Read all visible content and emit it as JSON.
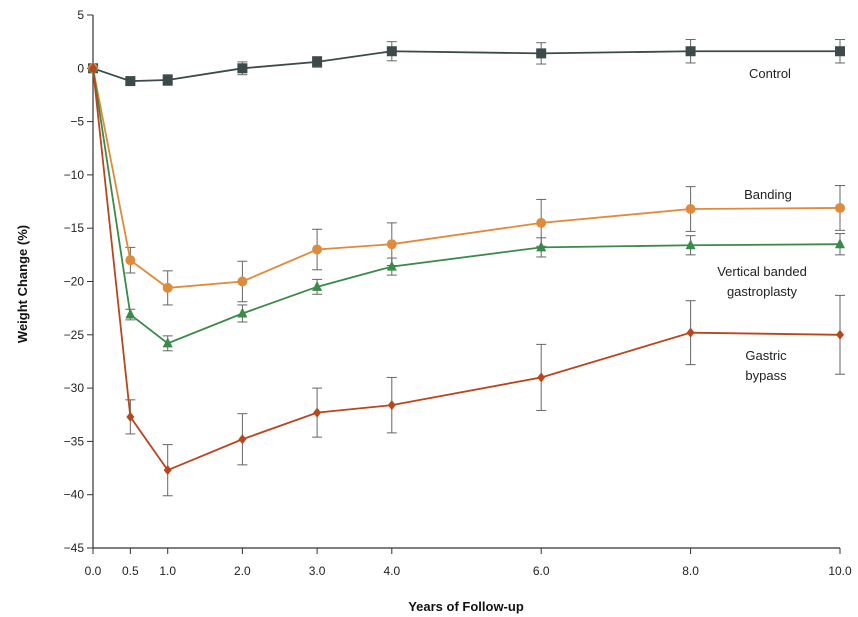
{
  "chart_data": {
    "type": "line",
    "title": "",
    "xlabel": "Years of Follow-up",
    "ylabel": "Weight Change (%)",
    "xlim": [
      0,
      10
    ],
    "ylim": [
      -45,
      5
    ],
    "x_ticks": [
      0,
      0.5,
      1.0,
      2.0,
      3.0,
      4.0,
      6.0,
      8.0,
      10.0
    ],
    "x_tick_labels": [
      "0.0",
      "0.5",
      "1.0",
      "2.0",
      "3.0",
      "4.0",
      "6.0",
      "8.0",
      "10.0"
    ],
    "y_ticks": [
      5,
      0,
      -5,
      -10,
      -15,
      -20,
      -25,
      -30,
      -35,
      -40,
      -45
    ],
    "y_tick_labels": [
      "5",
      "0",
      "−5",
      "−10",
      "−15",
      "−20",
      "−25",
      "−30",
      "−35",
      "−40",
      "−45"
    ],
    "grid": false,
    "legend": "none",
    "series": [
      {
        "name": "Control",
        "label_lines": [
          "Control"
        ],
        "color": "#3b4a4a",
        "marker": "square",
        "x": [
          0,
          0.5,
          1.0,
          2.0,
          3.0,
          4.0,
          6.0,
          8.0,
          10.0
        ],
        "y": [
          0,
          -1.2,
          -1.1,
          0.0,
          0.6,
          1.6,
          1.4,
          1.6,
          1.6
        ],
        "error": [
          0,
          0.3,
          0.5,
          0.6,
          0.5,
          0.9,
          1.0,
          1.1,
          1.1
        ]
      },
      {
        "name": "Banding",
        "label_lines": [
          "Banding"
        ],
        "color": "#e08a3c",
        "marker": "circle",
        "x": [
          0,
          0.5,
          1.0,
          2.0,
          3.0,
          4.0,
          6.0,
          8.0,
          10.0
        ],
        "y": [
          0,
          -18.0,
          -20.6,
          -20.0,
          -17.0,
          -16.5,
          -14.5,
          -13.2,
          -13.1
        ],
        "error": [
          0,
          1.2,
          1.6,
          1.9,
          1.9,
          2.0,
          2.2,
          2.1,
          2.1
        ]
      },
      {
        "name": "Vertical banded gastroplasty",
        "label_lines": [
          "Vertical banded",
          "gastroplasty"
        ],
        "color": "#3a8a4a",
        "marker": "triangle",
        "x": [
          0,
          0.5,
          1.0,
          2.0,
          3.0,
          4.0,
          6.0,
          8.0,
          10.0
        ],
        "y": [
          0,
          -23.1,
          -25.8,
          -23.0,
          -20.5,
          -18.6,
          -16.8,
          -16.6,
          -16.5
        ],
        "error": [
          0,
          0.5,
          0.7,
          0.8,
          0.7,
          0.8,
          0.9,
          0.9,
          1.0
        ]
      },
      {
        "name": "Gastric bypass",
        "label_lines": [
          "Gastric",
          "bypass"
        ],
        "color": "#b8461e",
        "marker": "diamond",
        "x": [
          0,
          0.5,
          1.0,
          2.0,
          3.0,
          4.0,
          6.0,
          8.0,
          10.0
        ],
        "y": [
          0,
          -32.7,
          -37.7,
          -34.8,
          -32.3,
          -31.6,
          -29.0,
          -24.8,
          -25.0
        ],
        "error": [
          0,
          1.6,
          2.4,
          2.4,
          2.3,
          2.6,
          3.1,
          3.0,
          3.7
        ]
      }
    ]
  }
}
